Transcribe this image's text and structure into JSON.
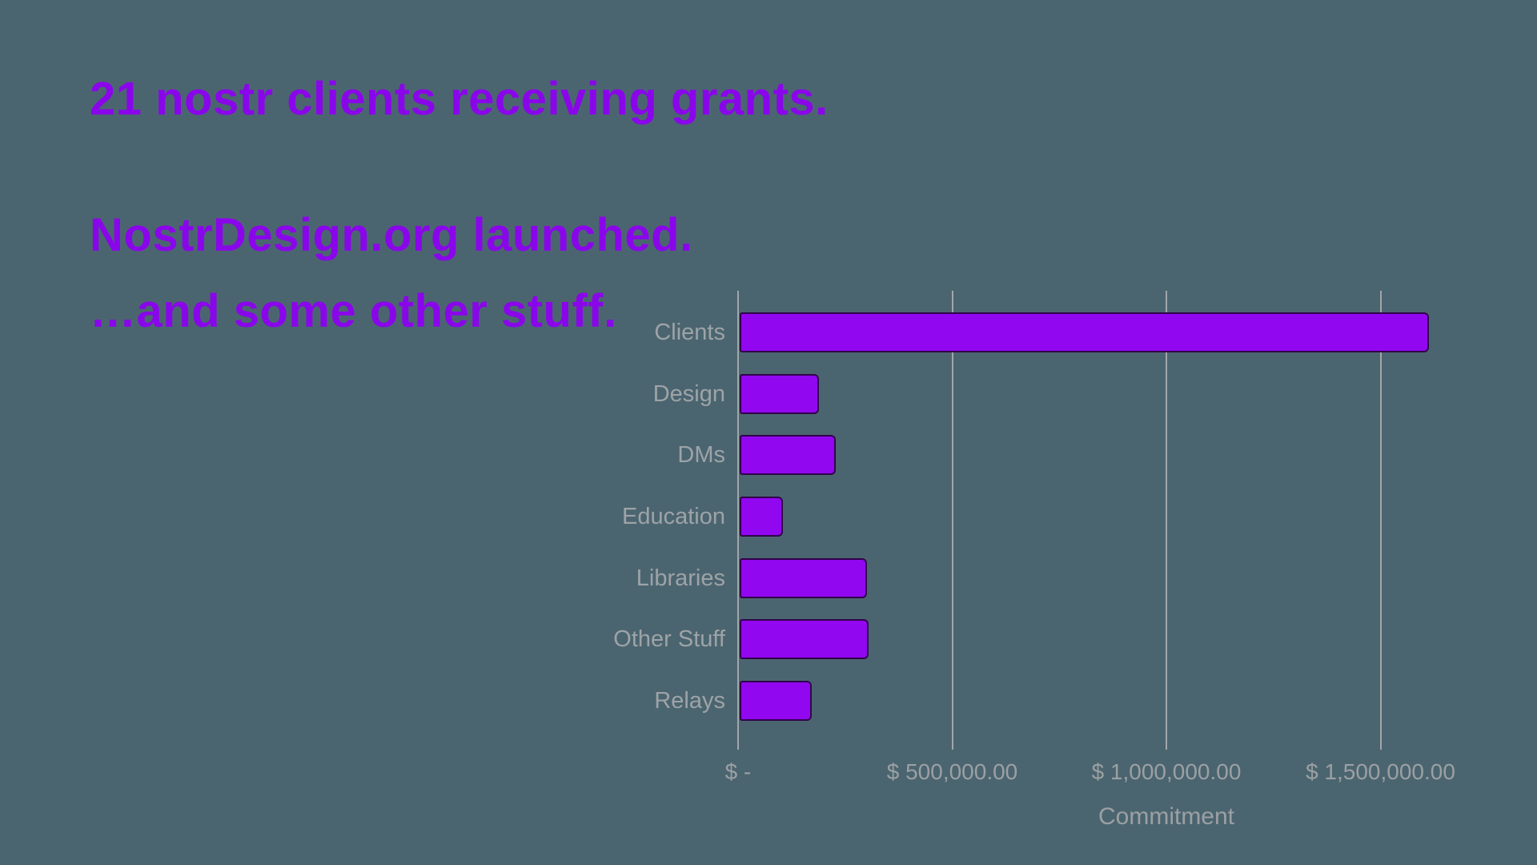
{
  "slide": {
    "background_color": "#4B6570",
    "headline_color": "#8A06EA"
  },
  "headlines": {
    "line1": "21 nostr clients receiving grants.",
    "line2": "NostrDesign.org launched.",
    "line3": "…and some other stuff."
  },
  "chart_data": {
    "type": "bar",
    "orientation": "horizontal",
    "title": "",
    "categories": [
      "Clients",
      "Design",
      "DMs",
      "Education",
      "Libraries",
      "Other Stuff",
      "Relays"
    ],
    "values": [
      1610000,
      185000,
      225000,
      100000,
      297000,
      300000,
      168000
    ],
    "xlabel": "Commitment",
    "ylabel": "",
    "xlim": [
      0,
      2000000
    ],
    "x_ticks": [
      {
        "value": 0,
        "label": "$ -"
      },
      {
        "value": 500000,
        "label": "$ 500,000.00"
      },
      {
        "value": 1000000,
        "label": "$ 1,000,000.00"
      },
      {
        "value": 1500000,
        "label": "$ 1,500,000.00"
      }
    ],
    "grid": true,
    "legend": false,
    "colors": {
      "bar_fill": "#9107F0",
      "bar_border": "#30034A",
      "gridline": "#A1A7AA",
      "category_label": "#9DA3A7",
      "tick_label": "#9BA0A3",
      "axis_title": "#9BA0A3"
    }
  }
}
